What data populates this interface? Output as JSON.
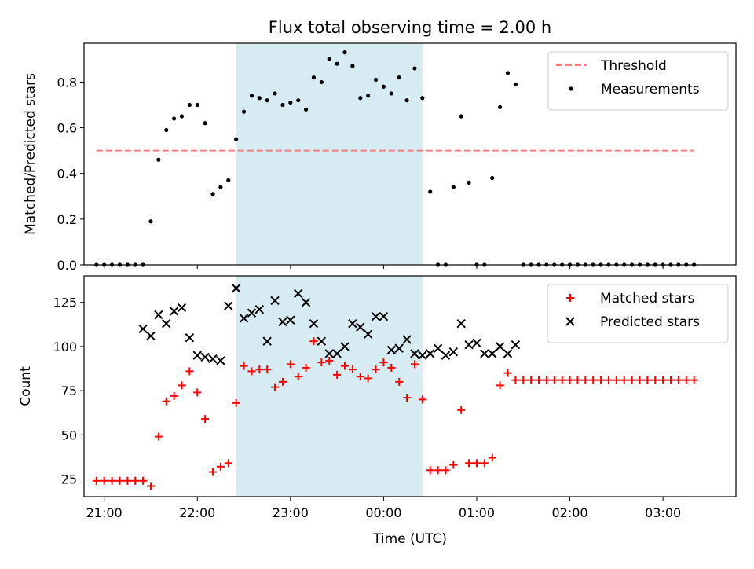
{
  "chart_data": [
    {
      "type": "scatter",
      "title": "Flux total observing time = 2.00 h",
      "xlabel": "",
      "ylabel": "Matched/Predicted stars",
      "ylim": [
        0,
        0.97
      ],
      "yticks": [
        "0.0",
        "0.2",
        "0.4",
        "0.6",
        "0.8"
      ],
      "grid": false,
      "legend_position": "top-right",
      "highlight_span": {
        "start": "22:25",
        "end": "00:25",
        "color": "#add8e6"
      },
      "threshold": {
        "name": "Threshold",
        "value": 0.5,
        "x_start": "20:55",
        "x_end": "03:20",
        "color": "#f08080"
      },
      "series": [
        {
          "name": "Measurements",
          "color": "#000000",
          "marker": "dot",
          "x": [
            "20:55",
            "21:00",
            "21:05",
            "21:10",
            "21:15",
            "21:20",
            "21:25",
            "21:30",
            "21:35",
            "21:40",
            "21:45",
            "21:50",
            "21:55",
            "22:00",
            "22:05",
            "22:10",
            "22:15",
            "22:20",
            "22:25",
            "22:30",
            "22:35",
            "22:40",
            "22:45",
            "22:50",
            "22:55",
            "23:00",
            "23:05",
            "23:10",
            "23:15",
            "23:20",
            "23:25",
            "23:30",
            "23:35",
            "23:40",
            "23:45",
            "23:50",
            "23:55",
            "00:00",
            "00:05",
            "00:10",
            "00:15",
            "00:20",
            "00:25",
            "00:30",
            "00:35",
            "00:40",
            "00:45",
            "00:50",
            "00:55",
            "01:00",
            "01:05",
            "01:10",
            "01:15",
            "01:20",
            "01:25",
            "01:30",
            "01:35",
            "01:40",
            "01:45",
            "01:50",
            "01:55",
            "02:00",
            "02:05",
            "02:10",
            "02:15",
            "02:20",
            "02:25",
            "02:30",
            "02:35",
            "02:40",
            "02:45",
            "02:50",
            "02:55",
            "03:00",
            "03:05",
            "03:10",
            "03:15",
            "03:20"
          ],
          "y": [
            0,
            0,
            0,
            0,
            0,
            0,
            0,
            0.19,
            0.46,
            0.59,
            0.64,
            0.65,
            0.7,
            0.7,
            0.62,
            0.31,
            0.34,
            0.37,
            0.55,
            0.67,
            0.74,
            0.73,
            0.72,
            0.75,
            0.7,
            0.71,
            0.72,
            0.68,
            0.82,
            0.8,
            0.9,
            0.88,
            0.93,
            0.87,
            0.73,
            0.74,
            0.81,
            0.78,
            0.75,
            0.82,
            0.72,
            0.86,
            0.73,
            0.32,
            0,
            0,
            0.34,
            0.65,
            0.36,
            0,
            0,
            0.38,
            0.69,
            0.84,
            0.79,
            0,
            0,
            0,
            0,
            0,
            0,
            0,
            0,
            0,
            0,
            0,
            0,
            0,
            0,
            0,
            0,
            0,
            0,
            0,
            0,
            0,
            0,
            0
          ]
        }
      ]
    },
    {
      "type": "scatter",
      "title": "",
      "xlabel": "Time (UTC)",
      "ylabel": "Count",
      "ylim": [
        15,
        140
      ],
      "yticks": [
        "25",
        "50",
        "75",
        "100",
        "125"
      ],
      "xticks": [
        "21:00",
        "22:00",
        "23:00",
        "00:00",
        "01:00",
        "02:00",
        "03:00"
      ],
      "grid": false,
      "legend_position": "top-right",
      "highlight_span": {
        "start": "22:25",
        "end": "00:25",
        "color": "#add8e6"
      },
      "series": [
        {
          "name": "Matched stars",
          "color": "#ff0000",
          "marker": "plus",
          "x": [
            "20:55",
            "21:00",
            "21:05",
            "21:10",
            "21:15",
            "21:20",
            "21:25",
            "21:30",
            "21:35",
            "21:40",
            "21:45",
            "21:50",
            "21:55",
            "22:00",
            "22:05",
            "22:10",
            "22:15",
            "22:20",
            "22:25",
            "22:30",
            "22:35",
            "22:40",
            "22:45",
            "22:50",
            "22:55",
            "23:00",
            "23:05",
            "23:10",
            "23:15",
            "23:20",
            "23:25",
            "23:30",
            "23:35",
            "23:40",
            "23:45",
            "23:50",
            "23:55",
            "00:00",
            "00:05",
            "00:10",
            "00:15",
            "00:20",
            "00:25",
            "00:30",
            "00:35",
            "00:40",
            "00:45",
            "00:50",
            "00:55",
            "01:00",
            "01:05",
            "01:10",
            "01:15",
            "01:20",
            "01:25",
            "01:30",
            "01:35",
            "01:40",
            "01:45",
            "01:50",
            "01:55",
            "02:00",
            "02:05",
            "02:10",
            "02:15",
            "02:20",
            "02:25",
            "02:30",
            "02:35",
            "02:40",
            "02:45",
            "02:50",
            "02:55",
            "03:00",
            "03:05",
            "03:10",
            "03:15",
            "03:20"
          ],
          "y": [
            24,
            24,
            24,
            24,
            24,
            24,
            24,
            21,
            49,
            69,
            72,
            78,
            86,
            74,
            59,
            29,
            32,
            34,
            68,
            89,
            86,
            87,
            87,
            77,
            80,
            90,
            83,
            88,
            103,
            91,
            92,
            84,
            89,
            87,
            83,
            82,
            87,
            91,
            88,
            80,
            71,
            90,
            70,
            30,
            30,
            30,
            33,
            64,
            34,
            34,
            34,
            37,
            78,
            85,
            81,
            81,
            81,
            81,
            81,
            81,
            81,
            81,
            81,
            81,
            81,
            81,
            81,
            81,
            81,
            81,
            81,
            81,
            81,
            81,
            81,
            81,
            81,
            81
          ]
        },
        {
          "name": "Predicted stars",
          "color": "#000000",
          "marker": "x",
          "x": [
            "21:25",
            "21:30",
            "21:35",
            "21:40",
            "21:45",
            "21:50",
            "21:55",
            "22:00",
            "22:05",
            "22:10",
            "22:15",
            "22:20",
            "22:25",
            "22:30",
            "22:35",
            "22:40",
            "22:45",
            "22:50",
            "22:55",
            "23:00",
            "23:05",
            "23:10",
            "23:15",
            "23:20",
            "23:25",
            "23:30",
            "23:35",
            "23:40",
            "23:45",
            "23:50",
            "23:55",
            "00:00",
            "00:05",
            "00:10",
            "00:15",
            "00:20",
            "00:25",
            "00:30",
            "00:35",
            "00:40",
            "00:45",
            "00:50",
            "00:55",
            "01:00",
            "01:05",
            "01:10",
            "01:15",
            "01:20",
            "01:25"
          ],
          "y": [
            110,
            106,
            118,
            113,
            120,
            122,
            105,
            95,
            94,
            93,
            92,
            123,
            133,
            116,
            119,
            121,
            103,
            126,
            114,
            115,
            130,
            125,
            113,
            103,
            96,
            96,
            100,
            113,
            111,
            107,
            117,
            117,
            98,
            99,
            104,
            96,
            95,
            96,
            99,
            95,
            97,
            113,
            101,
            102,
            96,
            96,
            100,
            96,
            101
          ]
        }
      ]
    }
  ]
}
